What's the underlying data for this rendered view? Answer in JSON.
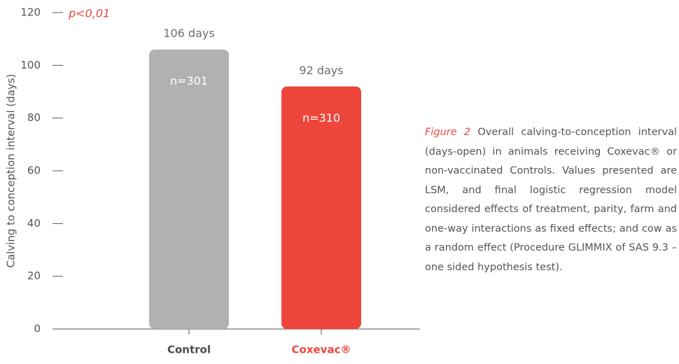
{
  "chart_data": {
    "type": "bar",
    "y_label": "Calving to conception interval (days)",
    "annotation": "p<0,01",
    "categories": [
      "Control",
      "Coxevac®"
    ],
    "values": [
      106,
      92
    ],
    "value_labels": [
      "106 days",
      "92 days"
    ],
    "sample_sizes": [
      "n=301",
      "n=310"
    ],
    "colors": [
      "#b1b1b3",
      "#ef463b"
    ],
    "category_label_colors": [
      "#4d4d4f",
      "#ef463b"
    ],
    "ylim": [
      0,
      120
    ],
    "yticks": [
      0,
      20,
      40,
      60,
      80,
      100,
      120
    ]
  },
  "caption_label": "Figure 2",
  "caption": "Overall calving-to-conception interval (days-open) in animals receiving Coxevac® or non-vaccinated Controls. Values presented are LSM, and final logistic regression model considered effects of treatment, parity, farm and one-way interactions as fixed effects; and cow as a random effect (Procedure GLIMMIX of SAS 9.3 – one sided hypothesis test)."
}
